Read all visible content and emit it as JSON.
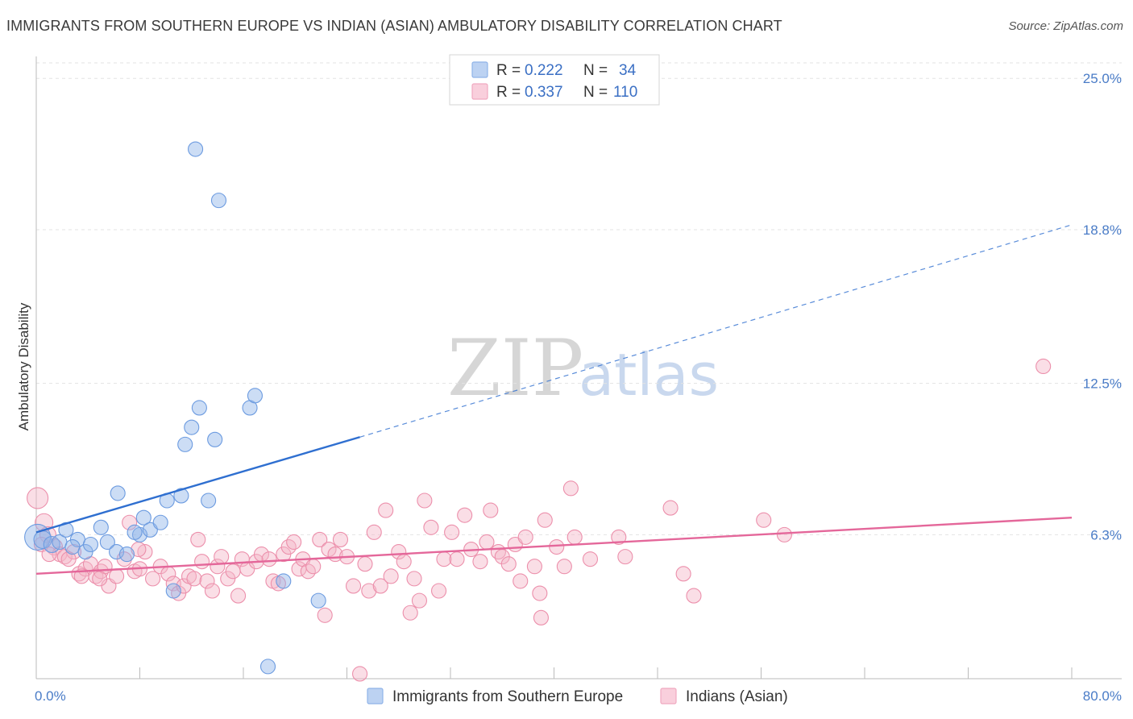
{
  "chart_data": {
    "type": "scatter",
    "title": "IMMIGRANTS FROM SOUTHERN EUROPE VS INDIAN (ASIAN) AMBULATORY DISABILITY CORRELATION CHART",
    "source": "Source: ZipAtlas.com",
    "xlabel": "",
    "ylabel": "Ambulatory Disability",
    "xlim": [
      0,
      80
    ],
    "ylim": [
      0.4,
      25.9
    ],
    "x_tick_labels": [
      "0.0%",
      "80.0%"
    ],
    "y_ticks": [
      6.3,
      12.5,
      18.8,
      25.0
    ],
    "y_tick_labels": [
      "6.3%",
      "12.5%",
      "18.8%",
      "25.0%"
    ],
    "watermark": {
      "zip": "ZIP",
      "atlas": "atlas"
    },
    "legend": {
      "rows": [
        {
          "r_label": "R = ",
          "r_value": "0.222",
          "n_label": "N = ",
          "n_value": "34"
        },
        {
          "r_label": "R = ",
          "r_value": "0.337",
          "n_label": "N = ",
          "n_value": "110"
        }
      ]
    },
    "series": [
      {
        "name": "Immigrants from Southern Europe",
        "color": "#8fb3e8",
        "stroke": "#6c9be0",
        "trend_color": "#2f6fd0",
        "trend": {
          "x0": 0,
          "y0": 6.4,
          "x1": 25,
          "y1": 10.3,
          "dashed_to_x": 80,
          "dashed_to_y": 19.0
        },
        "points": [
          [
            0.1,
            6.2,
            16
          ],
          [
            0.5,
            6.1,
            11
          ],
          [
            1.2,
            5.9,
            10
          ],
          [
            1.8,
            6.0,
            9
          ],
          [
            2.3,
            6.5,
            9
          ],
          [
            3.2,
            6.1,
            9
          ],
          [
            2.8,
            5.8,
            9
          ],
          [
            3.8,
            5.6,
            9
          ],
          [
            4.2,
            5.9,
            9
          ],
          [
            5.0,
            6.6,
            9
          ],
          [
            5.5,
            6.0,
            9
          ],
          [
            6.2,
            5.6,
            9
          ],
          [
            7.0,
            5.5,
            9
          ],
          [
            8.0,
            6.3,
            9
          ],
          [
            7.6,
            6.4,
            9
          ],
          [
            8.3,
            7.0,
            9
          ],
          [
            8.8,
            6.5,
            9
          ],
          [
            9.6,
            6.8,
            9
          ],
          [
            10.1,
            7.7,
            9
          ],
          [
            11.2,
            7.9,
            9
          ],
          [
            6.3,
            8.0,
            9
          ],
          [
            11.5,
            10.0,
            9
          ],
          [
            12.0,
            10.7,
            9
          ],
          [
            12.6,
            11.5,
            9
          ],
          [
            13.3,
            7.7,
            9
          ],
          [
            13.8,
            10.2,
            9
          ],
          [
            16.5,
            11.5,
            9
          ],
          [
            16.9,
            12.0,
            9
          ],
          [
            12.3,
            22.1,
            9
          ],
          [
            14.1,
            20.0,
            9
          ],
          [
            10.6,
            4.0,
            9
          ],
          [
            17.9,
            0.9,
            9
          ],
          [
            19.1,
            4.4,
            9
          ],
          [
            21.8,
            3.6,
            9
          ]
        ]
      },
      {
        "name": "Indians (Asian)",
        "color": "#f4b6c8",
        "stroke": "#ec8fab",
        "trend_color": "#e4679a",
        "trend": {
          "x0": 0,
          "y0": 4.7,
          "x1": 80,
          "y1": 7.0
        },
        "points": [
          [
            0.1,
            7.8,
            13
          ],
          [
            0.6,
            6.8,
            11
          ],
          [
            0.9,
            6.3,
            10
          ],
          [
            1.4,
            5.8,
            10
          ],
          [
            1.8,
            5.5,
            9
          ],
          [
            2.2,
            5.4,
            9
          ],
          [
            2.9,
            5.6,
            9
          ],
          [
            3.3,
            4.7,
            9
          ],
          [
            3.8,
            4.9,
            9
          ],
          [
            4.2,
            5.1,
            9
          ],
          [
            4.6,
            4.6,
            9
          ],
          [
            5.0,
            4.8,
            9
          ],
          [
            5.3,
            5.0,
            9
          ],
          [
            5.6,
            4.2,
            9
          ],
          [
            6.2,
            4.6,
            9
          ],
          [
            6.8,
            5.3,
            9
          ],
          [
            7.2,
            6.8,
            9
          ],
          [
            7.6,
            4.8,
            9
          ],
          [
            8.0,
            4.9,
            9
          ],
          [
            8.4,
            5.6,
            9
          ],
          [
            9.0,
            4.5,
            9
          ],
          [
            9.6,
            5.0,
            9
          ],
          [
            10.2,
            4.7,
            9
          ],
          [
            10.6,
            4.3,
            9
          ],
          [
            11.0,
            3.9,
            9
          ],
          [
            11.4,
            4.2,
            9
          ],
          [
            11.8,
            4.6,
            9
          ],
          [
            12.2,
            4.5,
            9
          ],
          [
            12.5,
            6.1,
            9
          ],
          [
            12.8,
            5.2,
            9
          ],
          [
            13.2,
            4.4,
            9
          ],
          [
            13.6,
            4.0,
            9
          ],
          [
            14.0,
            5.0,
            9
          ],
          [
            14.3,
            5.4,
            9
          ],
          [
            14.8,
            4.5,
            9
          ],
          [
            15.2,
            4.8,
            9
          ],
          [
            15.6,
            3.8,
            9
          ],
          [
            15.9,
            5.3,
            9
          ],
          [
            16.3,
            4.9,
            9
          ],
          [
            17.0,
            5.2,
            9
          ],
          [
            17.4,
            5.5,
            9
          ],
          [
            18.0,
            5.3,
            9
          ],
          [
            18.3,
            4.4,
            9
          ],
          [
            18.7,
            4.3,
            9
          ],
          [
            19.1,
            5.5,
            9
          ],
          [
            19.5,
            5.8,
            9
          ],
          [
            19.9,
            6.0,
            9
          ],
          [
            20.3,
            4.9,
            9
          ],
          [
            20.6,
            5.3,
            9
          ],
          [
            21.0,
            4.8,
            9
          ],
          [
            21.4,
            5.0,
            9
          ],
          [
            21.9,
            6.1,
            9
          ],
          [
            22.3,
            3.0,
            9
          ],
          [
            22.6,
            5.7,
            9
          ],
          [
            23.1,
            5.5,
            9
          ],
          [
            23.5,
            6.1,
            9
          ],
          [
            24.0,
            5.4,
            9
          ],
          [
            24.5,
            4.2,
            9
          ],
          [
            25.0,
            0.6,
            9
          ],
          [
            25.4,
            5.1,
            9
          ],
          [
            25.7,
            4.0,
            9
          ],
          [
            26.1,
            6.4,
            9
          ],
          [
            26.6,
            4.2,
            9
          ],
          [
            27.0,
            7.3,
            9
          ],
          [
            27.4,
            4.6,
            9
          ],
          [
            28.0,
            5.6,
            9
          ],
          [
            28.4,
            5.2,
            9
          ],
          [
            28.9,
            3.1,
            9
          ],
          [
            29.2,
            4.5,
            9
          ],
          [
            29.6,
            3.6,
            9
          ],
          [
            30.0,
            7.7,
            9
          ],
          [
            30.5,
            6.6,
            9
          ],
          [
            31.1,
            4.0,
            9
          ],
          [
            31.5,
            5.3,
            9
          ],
          [
            32.1,
            6.4,
            9
          ],
          [
            32.5,
            5.3,
            9
          ],
          [
            33.1,
            7.1,
            9
          ],
          [
            33.6,
            5.7,
            9
          ],
          [
            34.3,
            5.2,
            9
          ],
          [
            34.8,
            6.0,
            9
          ],
          [
            35.1,
            7.3,
            9
          ],
          [
            35.7,
            5.6,
            9
          ],
          [
            36.0,
            5.4,
            9
          ],
          [
            36.5,
            5.1,
            9
          ],
          [
            37.0,
            5.9,
            9
          ],
          [
            37.4,
            4.4,
            9
          ],
          [
            37.8,
            6.2,
            9
          ],
          [
            38.5,
            5.0,
            9
          ],
          [
            38.9,
            3.9,
            9
          ],
          [
            39.0,
            2.9,
            9
          ],
          [
            39.3,
            6.9,
            9
          ],
          [
            40.2,
            5.8,
            9
          ],
          [
            40.8,
            5.0,
            9
          ],
          [
            41.3,
            8.2,
            9
          ],
          [
            41.6,
            6.2,
            9
          ],
          [
            42.8,
            5.3,
            9
          ],
          [
            45.0,
            6.2,
            9
          ],
          [
            45.5,
            5.4,
            9
          ],
          [
            49.0,
            7.4,
            9
          ],
          [
            50.0,
            4.7,
            9
          ],
          [
            50.8,
            3.8,
            9
          ],
          [
            56.2,
            6.9,
            9
          ],
          [
            57.8,
            6.3,
            9
          ],
          [
            77.8,
            13.2,
            9
          ],
          [
            0.4,
            5.9,
            9
          ],
          [
            1.0,
            5.5,
            9
          ],
          [
            2.5,
            5.3,
            9
          ],
          [
            3.5,
            4.6,
            9
          ],
          [
            4.9,
            4.5,
            9
          ],
          [
            7.9,
            5.7,
            9
          ]
        ]
      }
    ]
  }
}
